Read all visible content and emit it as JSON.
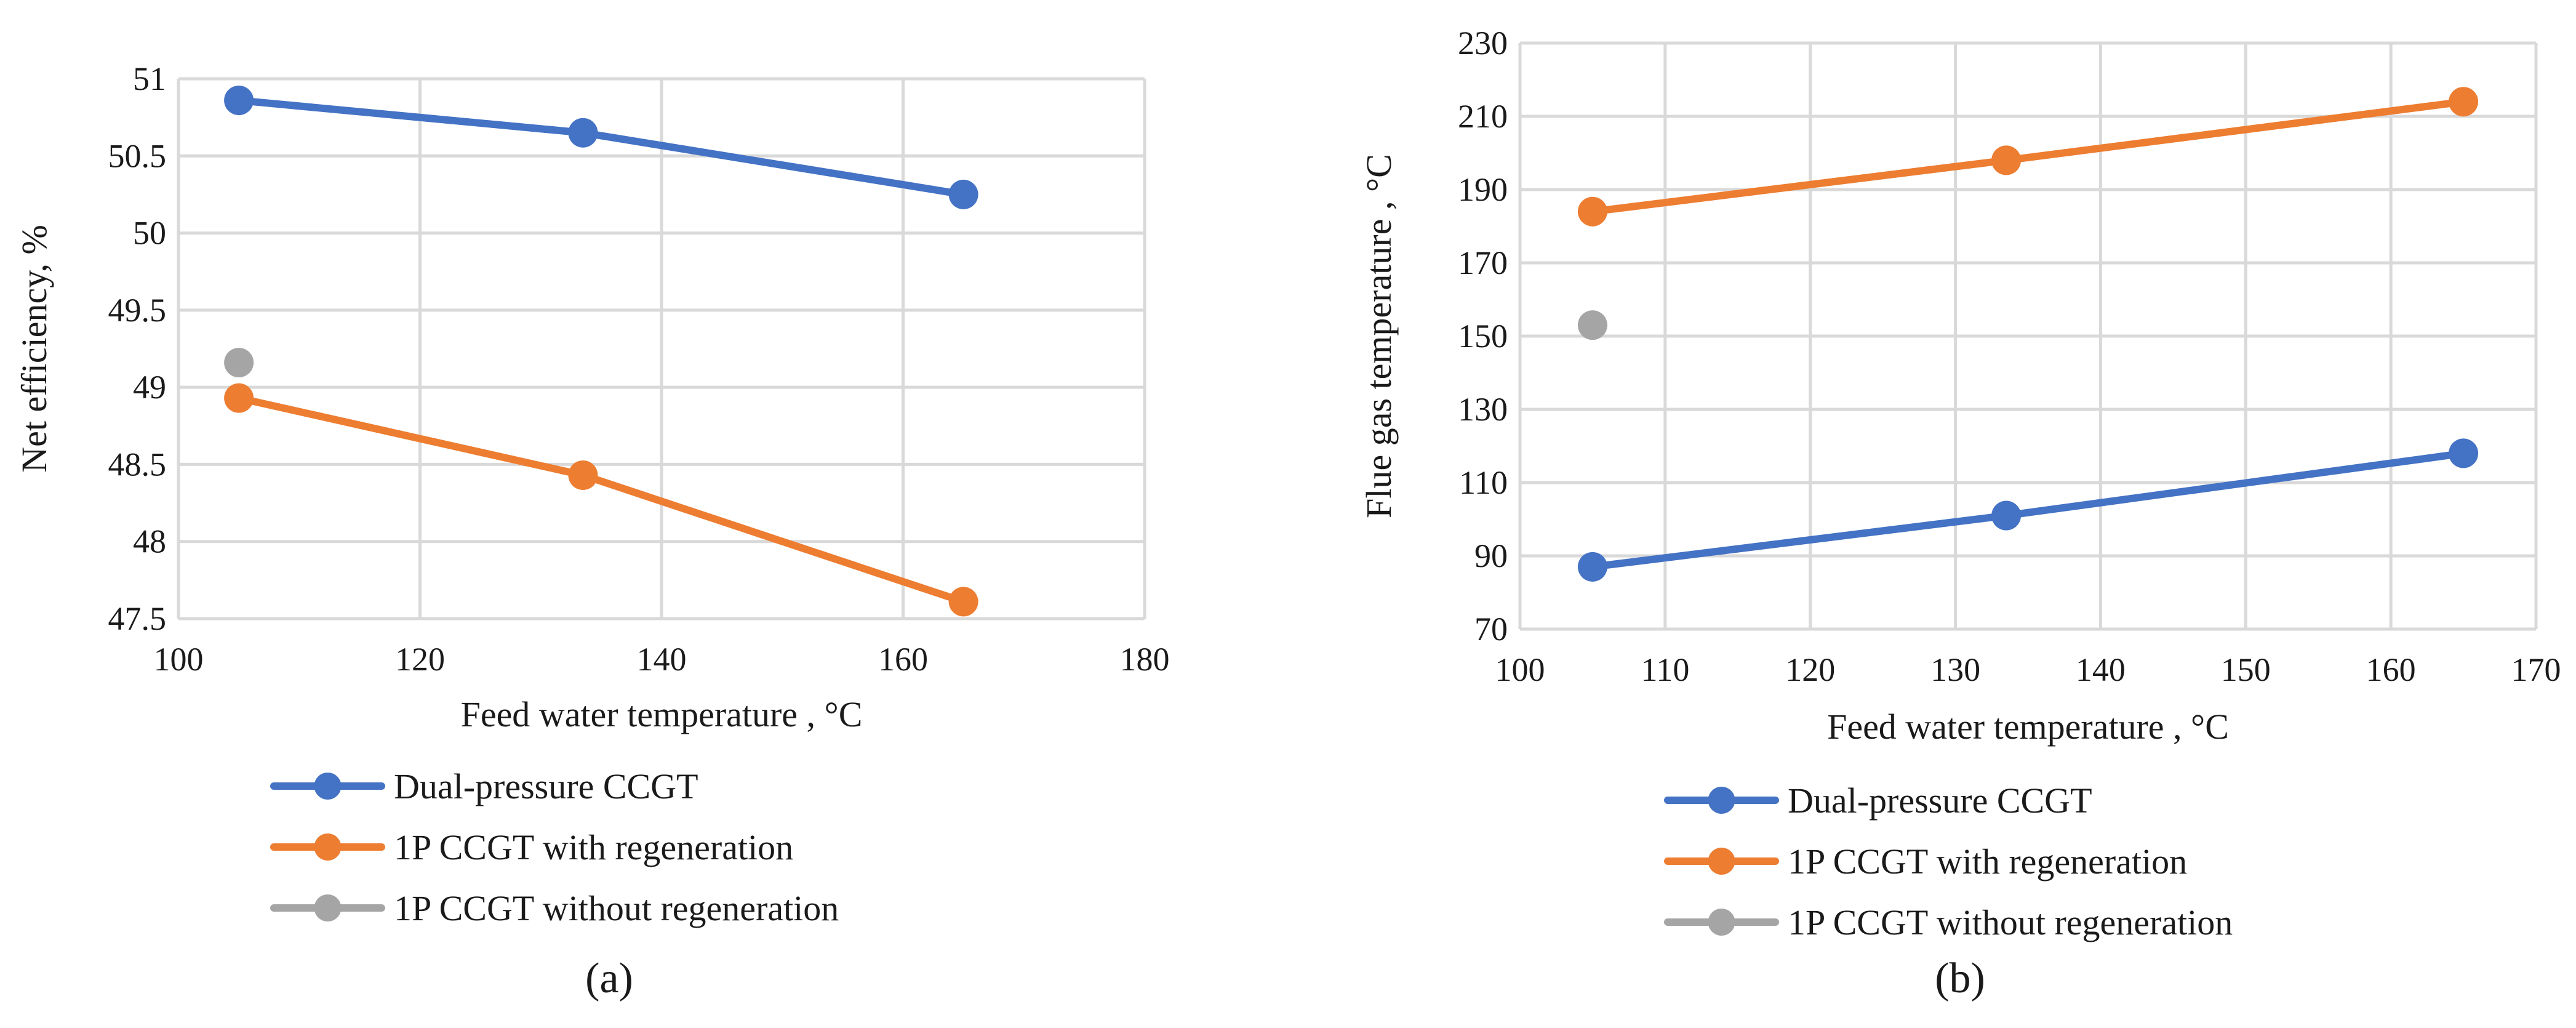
{
  "figure": {
    "panels": [
      "(a)",
      "(b)"
    ]
  },
  "colors": {
    "dual_pressure": "#4472c4",
    "with_regeneration": "#ed7d31",
    "without_regeneration": "#a5a5a5",
    "grid": "#d9d9d9"
  },
  "chart_data": [
    {
      "type": "line",
      "panel_label": "(a)",
      "xlabel": "Feed water temperature , °C",
      "ylabel": "Net efficiency, %",
      "xlim": [
        100,
        180
      ],
      "ylim": [
        47.5,
        51
      ],
      "xticks": [
        100,
        120,
        140,
        160,
        180
      ],
      "xtick_labels": [
        "100",
        "120",
        "140",
        "160",
        "180"
      ],
      "yticks": [
        47.5,
        48,
        48.5,
        49,
        49.5,
        50,
        50.5,
        51
      ],
      "ytick_labels": [
        "47.5",
        "48",
        "48.5",
        "49",
        "49.5",
        "50",
        "50.5",
        "51"
      ],
      "grid": true,
      "legend_position": "bottom",
      "series": [
        {
          "name": "Dual-pressure CCGT",
          "color": "#4472c4",
          "points": [
            [
              105,
              50.86
            ],
            [
              133.5,
              50.65
            ],
            [
              165,
              50.25
            ]
          ]
        },
        {
          "name": "1P CCGT with regeneration",
          "color": "#ed7d31",
          "points": [
            [
              105,
              48.93
            ],
            [
              133.5,
              48.43
            ],
            [
              165,
              47.61
            ]
          ]
        },
        {
          "name": "1P CCGT without regeneration",
          "color": "#a5a5a5",
          "points": [
            [
              105,
              49.16
            ]
          ]
        }
      ]
    },
    {
      "type": "line",
      "panel_label": "(b)",
      "xlabel": "Feed water temperature , °C",
      "ylabel": "Flue gas temperature , °C",
      "xlim": [
        100,
        170
      ],
      "ylim": [
        70,
        230
      ],
      "xticks": [
        100,
        110,
        120,
        130,
        140,
        150,
        160,
        170
      ],
      "xtick_labels": [
        "100",
        "110",
        "120",
        "130",
        "140",
        "150",
        "160",
        "170"
      ],
      "yticks": [
        70,
        90,
        110,
        130,
        150,
        170,
        190,
        210,
        230
      ],
      "ytick_labels": [
        "70",
        "90",
        "110",
        "130",
        "150",
        "170",
        "190",
        "210",
        "230"
      ],
      "grid": true,
      "legend_position": "bottom",
      "series": [
        {
          "name": "Dual-pressure CCGT",
          "color": "#4472c4",
          "points": [
            [
              105,
              87
            ],
            [
              133.5,
              101
            ],
            [
              165,
              118
            ]
          ]
        },
        {
          "name": "1P CCGT with regeneration",
          "color": "#ed7d31",
          "points": [
            [
              105,
              184
            ],
            [
              133.5,
              198
            ],
            [
              165,
              214
            ]
          ]
        },
        {
          "name": "1P CCGT without regeneration",
          "color": "#a5a5a5",
          "points": [
            [
              105,
              153
            ]
          ]
        }
      ]
    }
  ]
}
